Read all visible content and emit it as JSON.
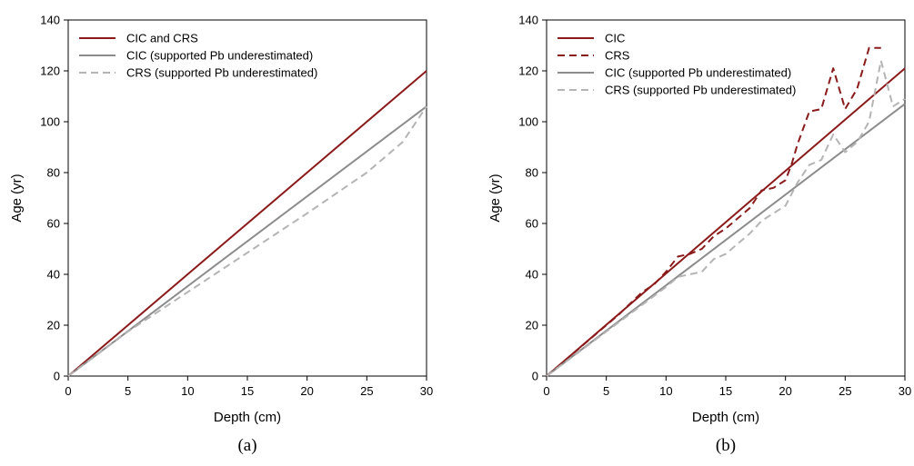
{
  "chart_data": [
    {
      "panel": "(a)",
      "type": "line",
      "xlabel": "Depth (cm)",
      "ylabel": "Age (yr)",
      "xlim": [
        0,
        30
      ],
      "ylim": [
        0,
        140
      ],
      "xticks": [
        0,
        5,
        10,
        15,
        20,
        25,
        30
      ],
      "yticks": [
        0,
        20,
        40,
        60,
        80,
        100,
        120,
        140
      ],
      "grid": false,
      "legend_position": "top-left",
      "series": [
        {
          "name": "CIC and CRS",
          "color": "#8b1a1a",
          "style": "solid",
          "x": [
            0,
            30
          ],
          "y": [
            0,
            120
          ]
        },
        {
          "name": "CIC (supported Pb underestimated)",
          "color": "#8c8c8c",
          "style": "solid",
          "x": [
            0,
            30
          ],
          "y": [
            0,
            106
          ]
        },
        {
          "name": "CRS (supported Pb underestimated)",
          "color": "#b4b4b4",
          "style": "dashed",
          "x": [
            0,
            5,
            10,
            15,
            20,
            25,
            28,
            30
          ],
          "y": [
            0,
            17.5,
            33,
            48.5,
            64,
            80,
            92,
            106
          ]
        }
      ]
    },
    {
      "panel": "(b)",
      "type": "line",
      "xlabel": "Depth (cm)",
      "ylabel": "Age (yr)",
      "xlim": [
        0,
        30
      ],
      "ylim": [
        0,
        140
      ],
      "xticks": [
        0,
        5,
        10,
        15,
        20,
        25,
        30
      ],
      "yticks": [
        0,
        20,
        40,
        60,
        80,
        100,
        120,
        140
      ],
      "grid": false,
      "legend_position": "top-left",
      "series": [
        {
          "name": "CIC",
          "color": "#8b1a1a",
          "style": "solid",
          "x": [
            0,
            30
          ],
          "y": [
            0,
            121
          ]
        },
        {
          "name": "CRS",
          "color": "#8b1a1a",
          "style": "dashed",
          "x": [
            0,
            2,
            4,
            6,
            8,
            9,
            10,
            11,
            12,
            13,
            14,
            15,
            16,
            17,
            18,
            19,
            20,
            20.5,
            21,
            22,
            23,
            24,
            25,
            26,
            27,
            28
          ],
          "y": [
            0,
            8,
            16,
            24,
            33,
            36,
            41,
            47,
            48,
            50,
            55,
            58,
            62,
            66,
            73,
            74,
            77,
            83,
            91,
            104,
            105,
            121,
            105,
            113,
            129,
            129
          ]
        },
        {
          "name": "CIC (supported Pb underestimated)",
          "color": "#8c8c8c",
          "style": "solid",
          "x": [
            0,
            30
          ],
          "y": [
            0,
            107
          ]
        },
        {
          "name": "CRS (supported Pb underestimated)",
          "color": "#b4b4b4",
          "style": "dashed",
          "x": [
            0,
            2,
            4,
            6,
            8,
            10,
            11,
            12,
            13,
            14,
            15,
            16,
            17,
            18,
            19,
            20,
            21,
            22,
            23,
            24,
            25,
            26,
            27,
            28,
            29,
            30
          ],
          "y": [
            0,
            7,
            14,
            21,
            28,
            35,
            39,
            40,
            41,
            46,
            48,
            52,
            56,
            61,
            64,
            67,
            76,
            83,
            85,
            95,
            88,
            92,
            100,
            124,
            106,
            109
          ]
        }
      ]
    }
  ]
}
